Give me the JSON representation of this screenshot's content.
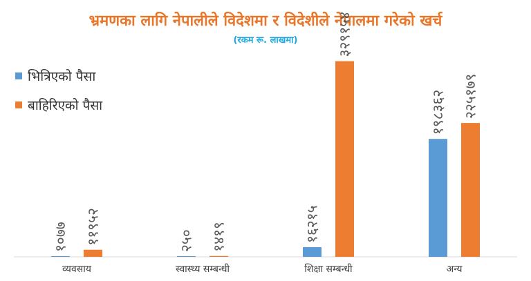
{
  "colors": {
    "series1": "#5b9bd5",
    "series2": "#ed7d31",
    "title": "#e8762b",
    "subtitle": "#1ea7e0"
  },
  "chart_data": {
    "type": "bar",
    "title": "भ्रमणका लागि नेपालीले विदेशमा र विदेशीले नेपालमा गरेको खर्च",
    "subtitle": "(रकम रू. लाखमा)",
    "categories": [
      "व्यवसाय",
      "स्वास्थ्य सम्बन्धी",
      "शिक्षा सम्बन्धी",
      "अन्य"
    ],
    "series": [
      {
        "name": "भित्रिएको पैसा",
        "values": [
          1077,
          250,
          16215,
          198362
        ],
        "labels": [
          "१०७७",
          "२५०",
          "१६२१५",
          "१९८३६२"
        ]
      },
      {
        "name": "बाहिरिएको पैसा",
        "values": [
          11952,
          1419,
          329154,
          225179
        ],
        "labels": [
          "११९५२",
          "१४१९",
          "३२९१५४",
          "२२५१७९"
        ]
      }
    ],
    "ylim": [
      0,
      360000
    ],
    "legend": "top-left",
    "grid": false
  }
}
